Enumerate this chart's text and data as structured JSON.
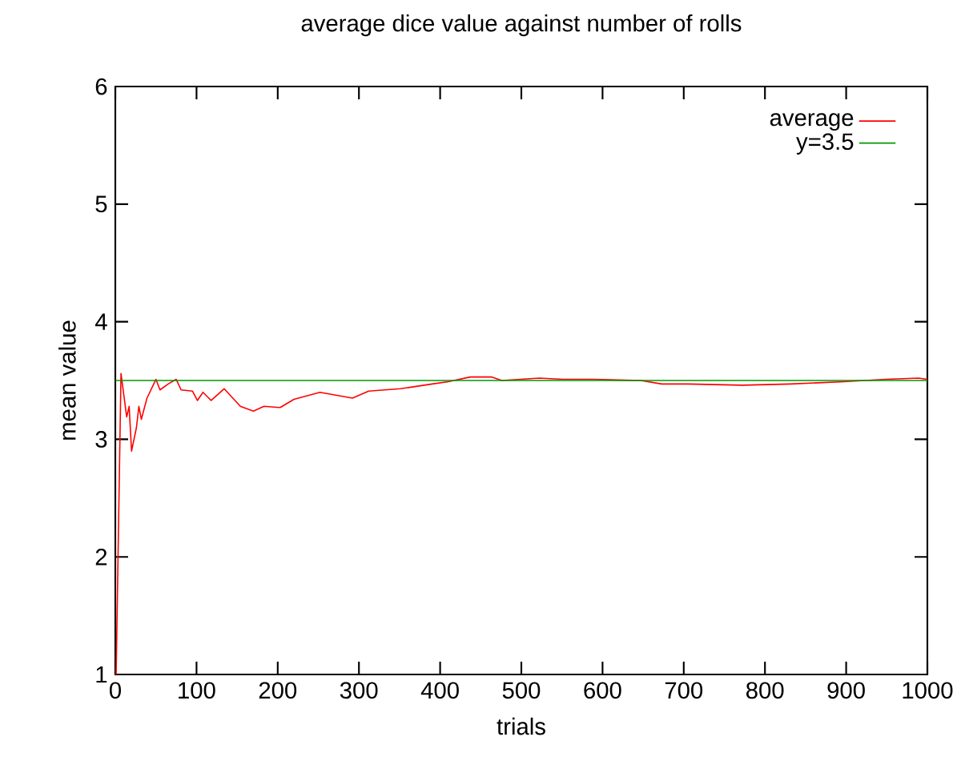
{
  "chart_data": {
    "type": "line",
    "title": "average dice value against number of rolls",
    "xlabel": "trials",
    "ylabel": "mean value",
    "xlim": [
      0,
      1000
    ],
    "ylim": [
      1,
      6
    ],
    "xticks": [
      0,
      100,
      200,
      300,
      400,
      500,
      600,
      700,
      800,
      900,
      1000
    ],
    "yticks": [
      1,
      2,
      3,
      4,
      5,
      6
    ],
    "legend": "top right",
    "series": [
      {
        "name": "average",
        "color": "#ff0000",
        "x": [
          1,
          7,
          14,
          17,
          20,
          26,
          29,
          32,
          39,
          50,
          55,
          65,
          75,
          81,
          95,
          101,
          108,
          118,
          134,
          154,
          170,
          183,
          203,
          220,
          252,
          292,
          312,
          351,
          390,
          410,
          437,
          463,
          476,
          522,
          551,
          588,
          647,
          673,
          706,
          772,
          831,
          897,
          949,
          989,
          1000
        ],
        "values": [
          1,
          3.56,
          3.19,
          3.28,
          2.9,
          3.1,
          3.28,
          3.17,
          3.35,
          3.51,
          3.42,
          3.47,
          3.51,
          3.42,
          3.41,
          3.33,
          3.4,
          3.33,
          3.43,
          3.28,
          3.24,
          3.28,
          3.27,
          3.34,
          3.4,
          3.35,
          3.41,
          3.43,
          3.47,
          3.49,
          3.53,
          3.53,
          3.5,
          3.52,
          3.51,
          3.51,
          3.5,
          3.47,
          3.47,
          3.46,
          3.47,
          3.49,
          3.51,
          3.52,
          3.51
        ]
      },
      {
        "name": "y=3.5",
        "color": "#009900",
        "x": [
          0,
          1000
        ],
        "values": [
          3.5,
          3.5
        ]
      }
    ]
  }
}
